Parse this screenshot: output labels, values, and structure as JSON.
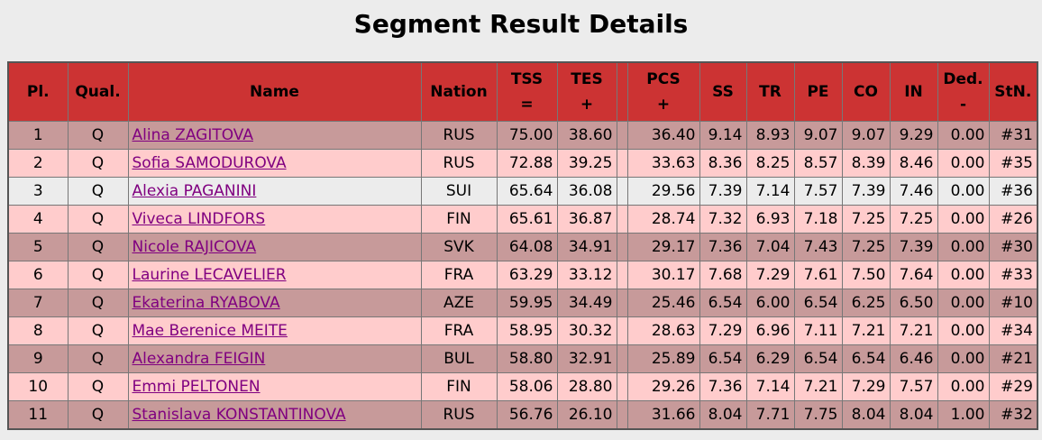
{
  "page": {
    "title": "Segment Result Details"
  },
  "headers": {
    "pl": "Pl.",
    "qual": "Qual.",
    "name": "Name",
    "nation": "Nation",
    "tss": "TSS",
    "tss_sub": "=",
    "tes": "TES",
    "tes_sub": "+",
    "pcs": "PCS",
    "pcs_sub": "+",
    "ss": "SS",
    "tr": "TR",
    "pe": "PE",
    "co": "CO",
    "in": "IN",
    "ded": "Ded.",
    "ded_sub": "-",
    "stn": "StN."
  },
  "rows": [
    {
      "pl": "1",
      "qual": "Q",
      "name": "Alina ZAGITOVA",
      "nation": "RUS",
      "tss": "75.00",
      "tes": "38.60",
      "pcs": "36.40",
      "ss": "9.14",
      "tr": "8.93",
      "pe": "9.07",
      "co": "9.07",
      "in": "9.29",
      "ded": "0.00",
      "stn": "#31"
    },
    {
      "pl": "2",
      "qual": "Q",
      "name": "Sofia SAMODUROVA",
      "nation": "RUS",
      "tss": "72.88",
      "tes": "39.25",
      "pcs": "33.63",
      "ss": "8.36",
      "tr": "8.25",
      "pe": "8.57",
      "co": "8.39",
      "in": "8.46",
      "ded": "0.00",
      "stn": "#35"
    },
    {
      "pl": "3",
      "qual": "Q",
      "name": "Alexia PAGANINI",
      "nation": "SUI",
      "tss": "65.64",
      "tes": "36.08",
      "pcs": "29.56",
      "ss": "7.39",
      "tr": "7.14",
      "pe": "7.57",
      "co": "7.39",
      "in": "7.46",
      "ded": "0.00",
      "stn": "#36"
    },
    {
      "pl": "4",
      "qual": "Q",
      "name": "Viveca LINDFORS",
      "nation": "FIN",
      "tss": "65.61",
      "tes": "36.87",
      "pcs": "28.74",
      "ss": "7.32",
      "tr": "6.93",
      "pe": "7.18",
      "co": "7.25",
      "in": "7.25",
      "ded": "0.00",
      "stn": "#26"
    },
    {
      "pl": "5",
      "qual": "Q",
      "name": "Nicole RAJICOVA",
      "nation": "SVK",
      "tss": "64.08",
      "tes": "34.91",
      "pcs": "29.17",
      "ss": "7.36",
      "tr": "7.04",
      "pe": "7.43",
      "co": "7.25",
      "in": "7.39",
      "ded": "0.00",
      "stn": "#30"
    },
    {
      "pl": "6",
      "qual": "Q",
      "name": "Laurine LECAVELIER",
      "nation": "FRA",
      "tss": "63.29",
      "tes": "33.12",
      "pcs": "30.17",
      "ss": "7.68",
      "tr": "7.29",
      "pe": "7.61",
      "co": "7.50",
      "in": "7.64",
      "ded": "0.00",
      "stn": "#33"
    },
    {
      "pl": "7",
      "qual": "Q",
      "name": "Ekaterina RYABOVA",
      "nation": "AZE",
      "tss": "59.95",
      "tes": "34.49",
      "pcs": "25.46",
      "ss": "6.54",
      "tr": "6.00",
      "pe": "6.54",
      "co": "6.25",
      "in": "6.50",
      "ded": "0.00",
      "stn": "#10"
    },
    {
      "pl": "8",
      "qual": "Q",
      "name": "Mae Berenice MEITE",
      "nation": "FRA",
      "tss": "58.95",
      "tes": "30.32",
      "pcs": "28.63",
      "ss": "7.29",
      "tr": "6.96",
      "pe": "7.11",
      "co": "7.21",
      "in": "7.21",
      "ded": "0.00",
      "stn": "#34"
    },
    {
      "pl": "9",
      "qual": "Q",
      "name": "Alexandra FEIGIN",
      "nation": "BUL",
      "tss": "58.80",
      "tes": "32.91",
      "pcs": "25.89",
      "ss": "6.54",
      "tr": "6.29",
      "pe": "6.54",
      "co": "6.54",
      "in": "6.46",
      "ded": "0.00",
      "stn": "#21"
    },
    {
      "pl": "10",
      "qual": "Q",
      "name": "Emmi PELTONEN",
      "nation": "FIN",
      "tss": "58.06",
      "tes": "28.80",
      "pcs": "29.26",
      "ss": "7.36",
      "tr": "7.14",
      "pe": "7.21",
      "co": "7.29",
      "in": "7.57",
      "ded": "0.00",
      "stn": "#29"
    },
    {
      "pl": "11",
      "qual": "Q",
      "name": "Stanislava KONSTANTINOVA",
      "nation": "RUS",
      "tss": "56.76",
      "tes": "26.10",
      "pcs": "31.66",
      "ss": "8.04",
      "tr": "7.71",
      "pe": "7.75",
      "co": "8.04",
      "in": "8.04",
      "ded": "1.00",
      "stn": "#32"
    }
  ]
}
